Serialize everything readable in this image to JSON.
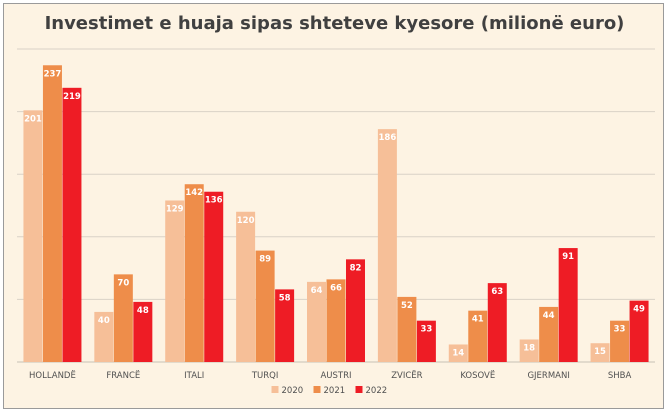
{
  "chart_data": {
    "type": "bar",
    "title": "Investimet e huaja sipas shteteve kyesore (milionë euro)",
    "categories": [
      "HOLLANDË",
      "FRANCË",
      "ITALI",
      "TURQI",
      "AUSTRI",
      "ZVICËR",
      "KOSOVË",
      "GJERMANI",
      "SHBA"
    ],
    "series": [
      {
        "name": "2020",
        "color": "#f6bf98",
        "values": [
          201,
          40,
          129,
          120,
          64,
          186,
          14,
          18,
          15
        ]
      },
      {
        "name": "2021",
        "color": "#ee8d4a",
        "values": [
          237,
          70,
          142,
          89,
          66,
          52,
          41,
          44,
          33
        ]
      },
      {
        "name": "2022",
        "color": "#ee1c25",
        "values": [
          219,
          48,
          136,
          58,
          82,
          33,
          63,
          91,
          49
        ]
      }
    ],
    "xlabel": "",
    "ylabel": "",
    "ylim": [
      0,
      250
    ],
    "gridlines": [
      0,
      50,
      100,
      150,
      200,
      250
    ],
    "grid": true,
    "legend_position": "bottom"
  }
}
